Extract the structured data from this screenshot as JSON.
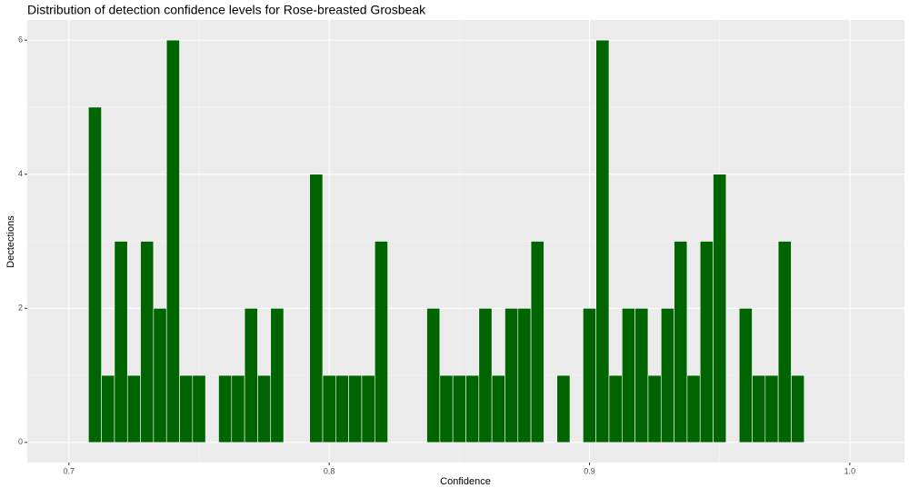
{
  "chart_data": {
    "type": "histogram",
    "title": "Distribution of detection confidence levels for Rose-breasted Grosbeak",
    "x_label": "Confidence",
    "y_label": "Dectections",
    "bins": [
      0.7075,
      0.7125,
      0.7175,
      0.7225,
      0.7275,
      0.7325,
      0.7375,
      0.7425,
      0.7475,
      0.7525,
      0.7575,
      0.7625,
      0.7675,
      0.7725,
      0.7775,
      0.7825,
      0.7875,
      0.7925,
      0.7975,
      0.8025,
      0.8075,
      0.8125,
      0.8175,
      0.8225,
      0.8275,
      0.8325,
      0.8375,
      0.8425,
      0.8475,
      0.8525,
      0.8575,
      0.8625,
      0.8675,
      0.8725,
      0.8775,
      0.8825,
      0.8875,
      0.8925,
      0.8975,
      0.9025,
      0.9075,
      0.9125,
      0.9175,
      0.9225,
      0.9275,
      0.9325,
      0.9375,
      0.9425,
      0.9475,
      0.9525,
      0.9575,
      0.9625,
      0.9675,
      0.9725,
      0.9775,
      0.9825
    ],
    "values": [
      5,
      1,
      3,
      1,
      3,
      2,
      6,
      1,
      1,
      0,
      1,
      1,
      2,
      1,
      2,
      0,
      0,
      4,
      1,
      1,
      1,
      1,
      3,
      0,
      0,
      0,
      2,
      1,
      1,
      1,
      2,
      1,
      2,
      2,
      3,
      0,
      1,
      0,
      2,
      6,
      1,
      2,
      2,
      1,
      2,
      3,
      1,
      3,
      4,
      0,
      2,
      1,
      1,
      3,
      1
    ],
    "color": "#006400",
    "edge_color": "#ffffff",
    "xlim": [
      0.684,
      1.021
    ],
    "ylim": [
      -0.3,
      6.3
    ],
    "xticks": [
      0.7,
      0.8,
      0.9,
      {
        "value": 1.0,
        "label": "1.0"
      }
    ],
    "yticks": [
      0,
      2,
      4,
      6
    ],
    "xminor": [
      0.75,
      0.85,
      0.95
    ],
    "yminor": [
      1,
      3,
      5
    ],
    "grid": true
  }
}
